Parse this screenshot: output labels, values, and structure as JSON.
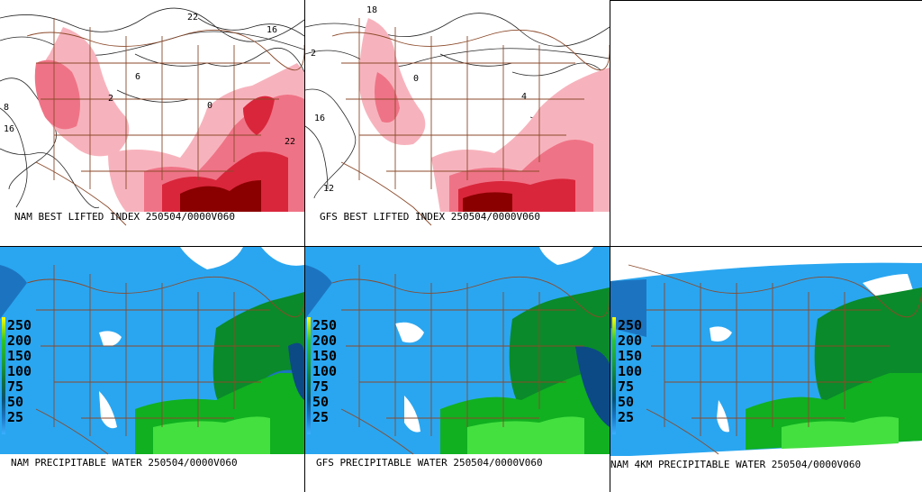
{
  "panels": [
    {
      "id": "nam-li",
      "caption": "NAM BEST LIFTED INDEX 250504/0000V060"
    },
    {
      "id": "gfs-li",
      "caption": "GFS BEST LIFTED INDEX 250504/0000V060"
    },
    {
      "id": "nam-pw",
      "caption": "NAM PRECIPITABLE WATER 250504/0000V060"
    },
    {
      "id": "gfs-pw",
      "caption": "GFS PRECIPITABLE WATER 250504/0000V060"
    },
    {
      "id": "nam4km-pw",
      "caption": "NAM 4KM PRECIPITABLE WATER 250504/0000V060"
    }
  ],
  "pw_legend": {
    "labels": [
      "250",
      "200",
      "150",
      "100",
      "75",
      "50",
      "25"
    ],
    "colors": [
      "#ffff00",
      "#2cc42c",
      "#1a9a3a",
      "#0f7040",
      "#0a5070",
      "#1c74c0",
      "#3ab0ff"
    ]
  },
  "li_contour_labels": [
    "22",
    "18",
    "16",
    "12",
    "8",
    "6",
    "4",
    "2",
    "0"
  ],
  "colors": {
    "pw_light": "#2aa6f0",
    "pw_mid": "#1c74c0",
    "pw_dark": "#0c4a86",
    "pw_green": "#10b020",
    "pw_green_dark": "#0a8a2a",
    "pw_green_light": "#44e040",
    "li_pink": "#f7b3bd",
    "li_rose": "#ef7386",
    "li_red": "#d9263b",
    "li_dark": "#8a0000",
    "borders": "#8b4a2b"
  }
}
